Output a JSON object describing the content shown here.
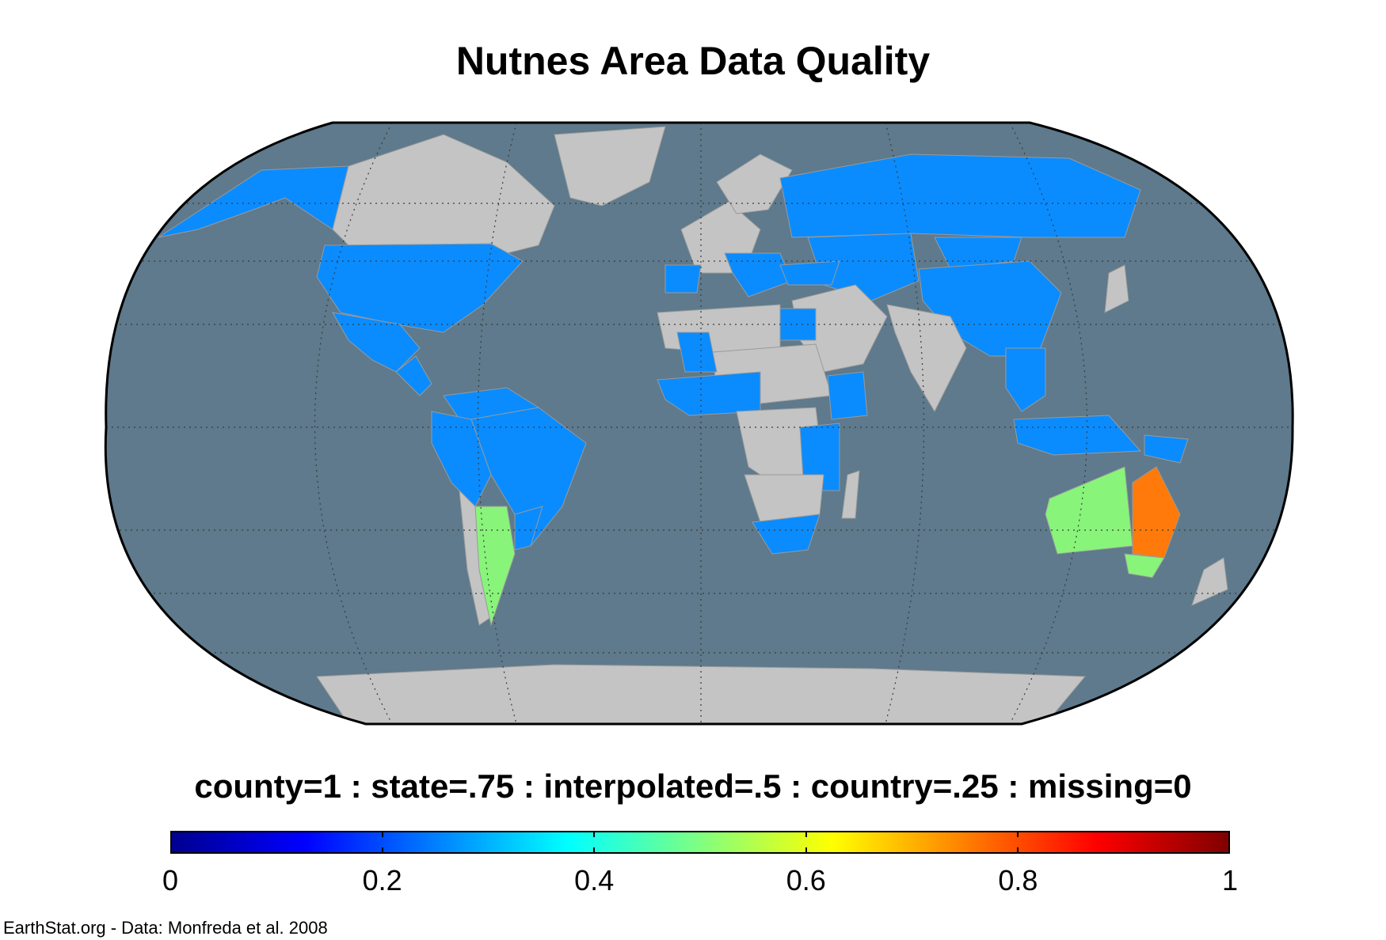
{
  "title": "Nutnes Area Data Quality",
  "legend_label": "county=1 : state=.75 : interpolated=.5 : country=.25 : missing=0",
  "colorbar": {
    "colormap": "jet",
    "range": [
      0,
      1
    ],
    "ticks": [
      "0",
      "0.2",
      "0.4",
      "0.6",
      "0.8",
      "1"
    ]
  },
  "credit": "EarthStat.org - Data: Monfreda et al. 2008",
  "colors": {
    "ocean": "#5e7a8c",
    "missing_land": "#c4c4c4",
    "country_level": "#0a8cff",
    "interpolated": "#88f47a",
    "state_level": "#ff7a0a",
    "graticule": "#3a3a3a"
  },
  "map": {
    "projection": "Robinson",
    "regions": [
      {
        "name": "Alaska",
        "value": 0.25
      },
      {
        "name": "Canada",
        "value": 0
      },
      {
        "name": "Greenland",
        "value": 0
      },
      {
        "name": "United States",
        "value": 0.25
      },
      {
        "name": "Mexico",
        "value": 0.25
      },
      {
        "name": "Central America",
        "value": 0.25
      },
      {
        "name": "Venezuela/Guianas",
        "value": 0.25
      },
      {
        "name": "Brazil",
        "value": 0.25
      },
      {
        "name": "Peru/Bolivia",
        "value": 0.25
      },
      {
        "name": "Chile",
        "value": 0
      },
      {
        "name": "Argentina",
        "value": 0.5
      },
      {
        "name": "Uruguay",
        "value": 0.25
      },
      {
        "name": "Western Europe",
        "value": 0
      },
      {
        "name": "Iberia",
        "value": 0.25
      },
      {
        "name": "Italy/Balkans",
        "value": 0.25
      },
      {
        "name": "Scandinavia",
        "value": 0
      },
      {
        "name": "Russia",
        "value": 0.25
      },
      {
        "name": "Central Asia",
        "value": 0.25
      },
      {
        "name": "China",
        "value": 0.25
      },
      {
        "name": "Mongolia",
        "value": 0.25
      },
      {
        "name": "India",
        "value": 0
      },
      {
        "name": "Middle East",
        "value": 0
      },
      {
        "name": "Turkey",
        "value": 0.25
      },
      {
        "name": "Egypt",
        "value": 0.25
      },
      {
        "name": "North Africa",
        "value": 0
      },
      {
        "name": "Sahel",
        "value": 0
      },
      {
        "name": "Mali",
        "value": 0.25
      },
      {
        "name": "West Africa",
        "value": 0.25
      },
      {
        "name": "Central Africa",
        "value": 0
      },
      {
        "name": "Ethiopia",
        "value": 0.25
      },
      {
        "name": "East Africa",
        "value": 0.25
      },
      {
        "name": "Southern Africa",
        "value": 0
      },
      {
        "name": "South Africa",
        "value": 0.25
      },
      {
        "name": "Madagascar",
        "value": 0
      },
      {
        "name": "Southeast Asia",
        "value": 0.25
      },
      {
        "name": "Indonesia",
        "value": 0.25
      },
      {
        "name": "Japan",
        "value": 0
      },
      {
        "name": "Papua New Guinea",
        "value": 0.25
      },
      {
        "name": "Western Australia",
        "value": 0.5
      },
      {
        "name": "Eastern Australia",
        "value": 0.75
      },
      {
        "name": "Southeast Australia",
        "value": 0.5
      },
      {
        "name": "New Zealand",
        "value": 0
      },
      {
        "name": "Antarctica",
        "value": 0
      }
    ]
  }
}
